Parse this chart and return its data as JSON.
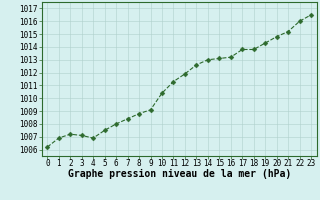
{
  "x": [
    0,
    1,
    2,
    3,
    4,
    5,
    6,
    7,
    8,
    9,
    10,
    11,
    12,
    13,
    14,
    15,
    16,
    17,
    18,
    19,
    20,
    21,
    22,
    23
  ],
  "y": [
    1006.2,
    1006.9,
    1007.2,
    1007.1,
    1006.9,
    1007.5,
    1008.0,
    1008.4,
    1008.8,
    1009.1,
    1010.4,
    1011.3,
    1011.9,
    1012.6,
    1013.0,
    1013.1,
    1013.2,
    1013.8,
    1013.8,
    1014.3,
    1014.8,
    1015.2,
    1016.0,
    1016.5
  ],
  "line_color": "#2d6a2d",
  "marker": "D",
  "marker_size": 2.5,
  "linewidth": 0.8,
  "linestyle": "--",
  "bg_color": "#d6f0ef",
  "grid_color": "#afd0cc",
  "ylabel_ticks": [
    1006,
    1007,
    1008,
    1009,
    1010,
    1011,
    1012,
    1013,
    1014,
    1015,
    1016,
    1017
  ],
  "xlabel": "Graphe pression niveau de la mer (hPa)",
  "xlim": [
    -0.5,
    23.5
  ],
  "ylim": [
    1005.5,
    1017.5
  ],
  "xlabel_fontsize": 7,
  "tick_fontsize": 5.5,
  "border_color": "#2d6a2d"
}
